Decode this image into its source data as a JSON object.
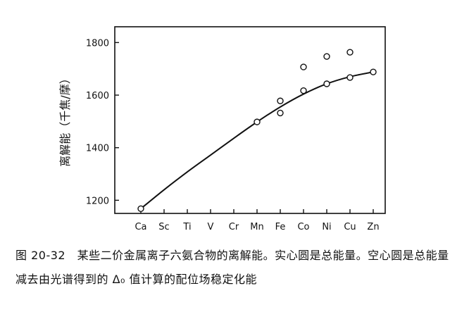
{
  "chart_data": {
    "type": "scatter",
    "title": "",
    "xlabel": "",
    "ylabel": "离解能（千焦/摩）",
    "categories": [
      "Ca",
      "Sc",
      "Ti",
      "V",
      "Cr",
      "Mn",
      "Fe",
      "Co",
      "Ni",
      "Cu",
      "Zn"
    ],
    "ylim": [
      1150,
      1860
    ],
    "yticks": [
      1200,
      1400,
      1600,
      1800
    ],
    "grid": false,
    "legend": "none",
    "series": [
      {
        "marker": "open-circle",
        "points": [
          {
            "x": "Ca",
            "y": 1168
          },
          {
            "x": "Mn",
            "y": 1498
          },
          {
            "x": "Fe",
            "y": 1532
          },
          {
            "x": "Fe",
            "y": 1578
          },
          {
            "x": "Co",
            "y": 1617
          },
          {
            "x": "Co",
            "y": 1707
          },
          {
            "x": "Ni",
            "y": 1643
          },
          {
            "x": "Ni",
            "y": 1747
          },
          {
            "x": "Cu",
            "y": 1667
          },
          {
            "x": "Cu",
            "y": 1763
          },
          {
            "x": "Zn",
            "y": 1688
          }
        ]
      }
    ],
    "curve": [
      {
        "x": "Ca",
        "y": 1168
      },
      {
        "x": "Sc",
        "y": 1240
      },
      {
        "x": "Ti",
        "y": 1308
      },
      {
        "x": "V",
        "y": 1372
      },
      {
        "x": "Cr",
        "y": 1436
      },
      {
        "x": "Mn",
        "y": 1498
      },
      {
        "x": "Fe",
        "y": 1555
      },
      {
        "x": "Co",
        "y": 1604
      },
      {
        "x": "Ni",
        "y": 1643
      },
      {
        "x": "Cu",
        "y": 1670
      },
      {
        "x": "Zn",
        "y": 1688
      }
    ]
  },
  "caption": "图 20-32　某些二价金属离子六氨合物的离解能。实心圆是总能量。空心圆是总能量减去由光谱得到的 Δ₀ 值计算的配位场稳定化能"
}
